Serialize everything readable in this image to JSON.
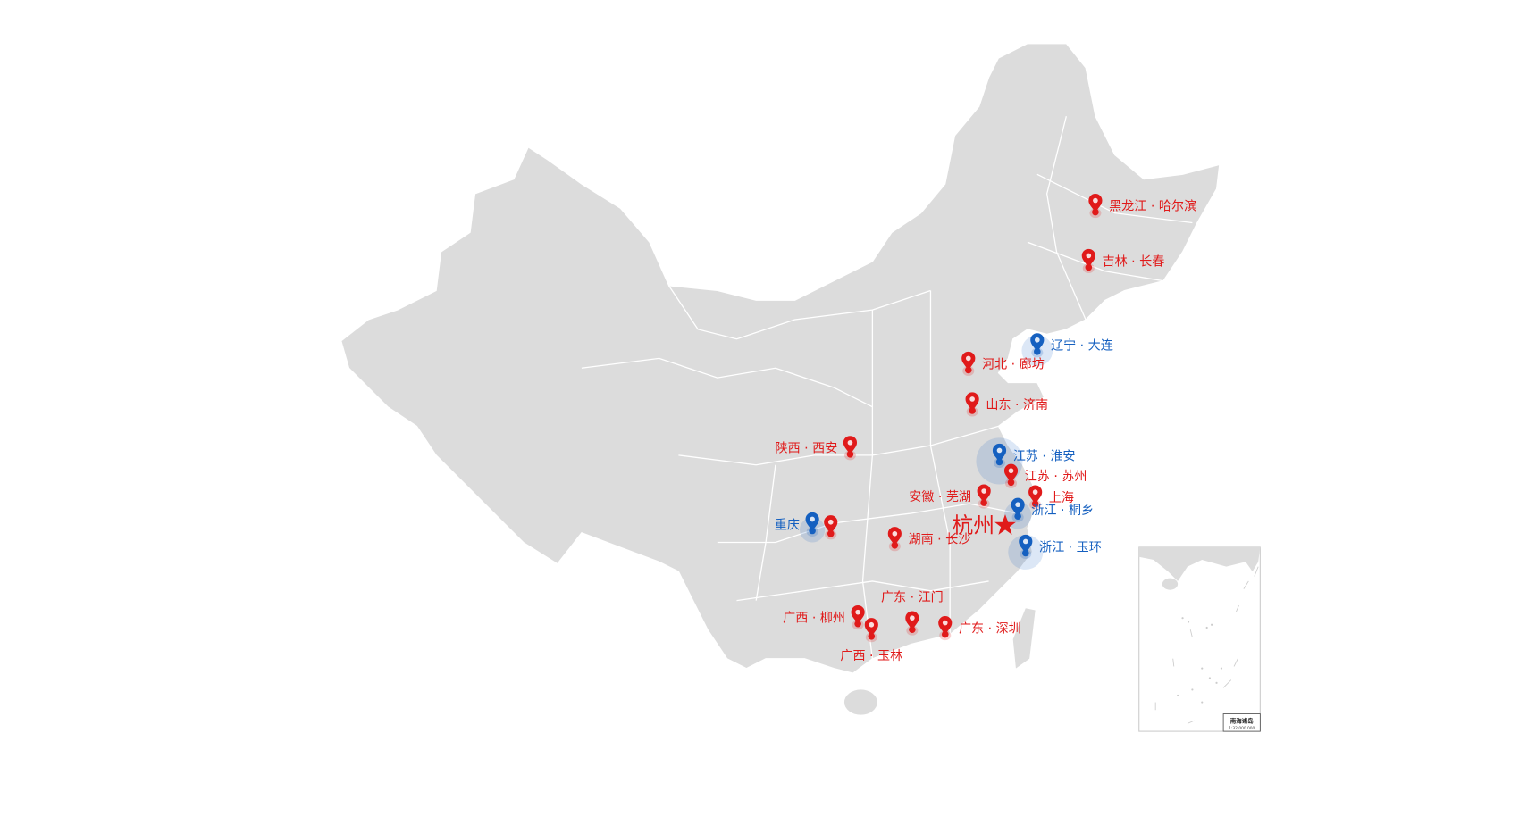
{
  "colors": {
    "land": "#dcdcdc",
    "border": "#ffffff",
    "red": "#e01a1a",
    "blue": "#1560c0"
  },
  "markers": [
    {
      "id": "harbin",
      "label": "黑龙江 · 哈尔滨",
      "color": "red",
      "label_side": "right"
    },
    {
      "id": "changchun",
      "label": "吉林 · 长春",
      "color": "red",
      "label_side": "right"
    },
    {
      "id": "dalian",
      "label": "辽宁 · 大连",
      "color": "blue",
      "label_side": "right"
    },
    {
      "id": "langfang",
      "label": "河北 · 廊坊",
      "color": "red",
      "label_side": "right"
    },
    {
      "id": "jinan",
      "label": "山东 · 济南",
      "color": "red",
      "label_side": "right"
    },
    {
      "id": "xian",
      "label": "陕西 · 西安",
      "color": "red",
      "label_side": "left"
    },
    {
      "id": "huaian",
      "label": "江苏 · 淮安",
      "color": "blue",
      "label_side": "right"
    },
    {
      "id": "suzhou",
      "label": "江苏 · 苏州",
      "color": "red",
      "label_side": "right"
    },
    {
      "id": "shanghai",
      "label": "上海",
      "color": "red",
      "label_side": "right"
    },
    {
      "id": "wuhu",
      "label": "安徽 · 芜湖",
      "color": "red",
      "label_side": "left"
    },
    {
      "id": "tongxiang",
      "label": "浙江 · 桐乡",
      "color": "blue",
      "label_side": "right"
    },
    {
      "id": "yuhuan",
      "label": "浙江 · 玉环",
      "color": "blue",
      "label_side": "right"
    },
    {
      "id": "chongqing",
      "label": "重庆",
      "color": "blue",
      "label_side": "left"
    },
    {
      "id": "chongqing2",
      "label": "",
      "color": "red",
      "label_side": "none"
    },
    {
      "id": "changsha",
      "label": "湖南 · 长沙",
      "color": "red",
      "label_side": "right"
    },
    {
      "id": "liuzhou",
      "label": "广西 · 柳州",
      "color": "red",
      "label_side": "left"
    },
    {
      "id": "yulin",
      "label": "广西 · 玉林",
      "color": "red",
      "label_side": "below"
    },
    {
      "id": "jiangmen",
      "label": "广东 · 江门",
      "color": "red",
      "label_side": "above"
    },
    {
      "id": "shenzhen",
      "label": "广东 · 深圳",
      "color": "red",
      "label_side": "right"
    }
  ],
  "headquarters": {
    "label": "杭州",
    "icon": "star-icon",
    "color": "#e01a1a"
  },
  "inset": {
    "title": "南海诸岛",
    "scale": "1:32 000 000"
  }
}
